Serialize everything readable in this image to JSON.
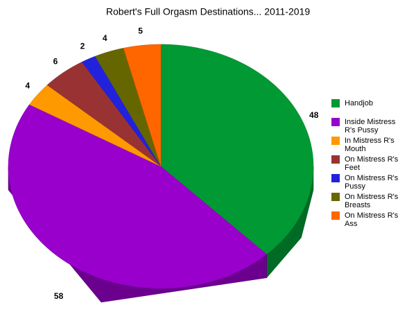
{
  "chart_data": {
    "type": "pie3d",
    "title": "Robert's Full Orgasm Destinations... 2011-2019",
    "categories": [
      "Handjob",
      "Inside Mistress R's Pussy",
      "In Mistress R's Mouth",
      "On Mistress R's Feet",
      "On Mistress R's Pussy",
      "On Mistress R's Breasts",
      "On Mistress R's Ass"
    ],
    "values": [
      48,
      58,
      4,
      6,
      2,
      4,
      5
    ],
    "colors": [
      "#009933",
      "#9900cc",
      "#ff9900",
      "#993333",
      "#2222dd",
      "#666600",
      "#ff6600"
    ],
    "legend": "right"
  }
}
